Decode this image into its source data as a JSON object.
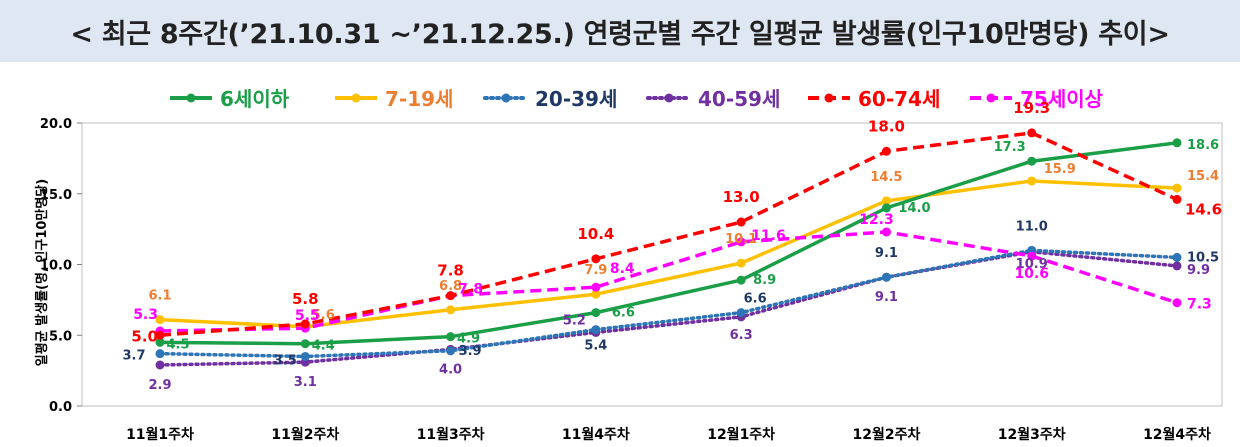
{
  "title": "< 최근 8주간(’21.10.31 ~’21.12.25.) 연령군별 주간 일평균 발생률(인구10만명당) 추이>",
  "chart_data": {
    "type": "line",
    "title": "< 최근 8주간(’21.10.31 ~’21.12.25.) 연령군별 주간 일평균 발생률(인구10만명당) 추이>",
    "ylabel": "일평균 발생률(명, 인구10만명당)",
    "xlabel": "",
    "categories": [
      "11월1주차",
      "11월2주차",
      "11월3주차",
      "11월4주차",
      "12월1주차",
      "12월2주차",
      "12월3주차",
      "12월4주차"
    ],
    "ylim": [
      0,
      20
    ],
    "yticks": [
      "0.0",
      "5.0",
      "10.0",
      "15.0",
      "20.0"
    ],
    "legend_position": "top",
    "series": [
      {
        "name": "6세이하",
        "color": "#1a9e47",
        "label_color": "#1a9e47",
        "style": "solid",
        "values": [
          4.5,
          4.4,
          4.9,
          6.6,
          8.9,
          14.0,
          17.3,
          18.6
        ],
        "labels": [
          "4.5",
          "4.4",
          "4.9",
          "6.6",
          "8.9",
          "14.0",
          "17.3",
          "18.6"
        ]
      },
      {
        "name": "7-19세",
        "color": "#ffc000",
        "label_color": "#ed7d31",
        "style": "solid",
        "values": [
          6.1,
          5.6,
          6.8,
          7.9,
          10.1,
          14.5,
          15.9,
          15.4
        ],
        "labels": [
          "6.1",
          "5.6",
          "6.8",
          "7.9",
          "10.1",
          "14.5",
          "15.9",
          "15.4"
        ]
      },
      {
        "name": "20-39세",
        "color": "#2e75b6",
        "label_color": "#1f3864",
        "style": "dotted",
        "values": [
          3.7,
          3.5,
          3.9,
          5.4,
          6.6,
          9.1,
          11.0,
          10.5
        ],
        "labels": [
          "3.7",
          "3.5",
          "3.9",
          "5.4",
          "6.6",
          "9.1",
          "11.0",
          "10.5"
        ]
      },
      {
        "name": "40-59세",
        "color": "#7030a0",
        "label_color": "#7030a0",
        "style": "dotted",
        "values": [
          2.9,
          3.1,
          4.0,
          5.2,
          6.3,
          9.1,
          10.9,
          9.9
        ],
        "labels": [
          "2.9",
          "3.1",
          "4.0",
          "5.2",
          "6.3",
          "9.1",
          "10.9",
          "9.9"
        ]
      },
      {
        "name": "60-74세",
        "color": "#ff0000",
        "label_color": "#ff0000",
        "style": "dashed",
        "values": [
          5.0,
          5.8,
          7.8,
          10.4,
          13.0,
          18.0,
          19.3,
          14.6
        ],
        "labels": [
          "5.0",
          "5.8",
          "7.8",
          "10.4",
          "13.0",
          "18.0",
          "19.3",
          "14.6"
        ]
      },
      {
        "name": "75세이상",
        "color": "#ff00ff",
        "label_color": "#ff00ff",
        "style": "dashed",
        "values": [
          5.3,
          5.5,
          7.8,
          8.4,
          11.6,
          12.3,
          10.6,
          7.3
        ],
        "labels": [
          "5.3",
          "5.5",
          "7.8",
          "8.4",
          "11.6",
          "12.3",
          "10.6",
          "7.3"
        ]
      }
    ]
  }
}
